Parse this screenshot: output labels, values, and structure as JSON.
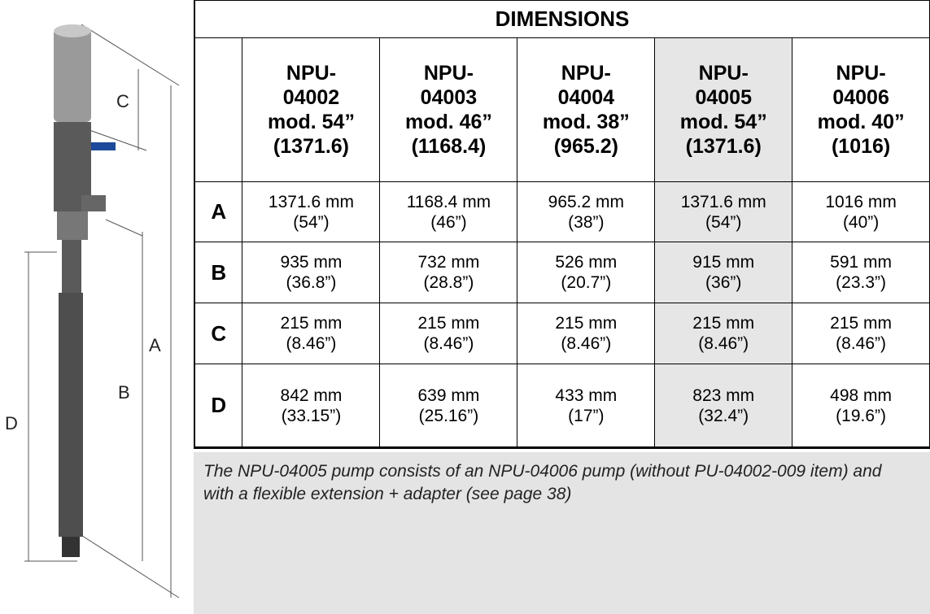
{
  "drawing": {
    "labels": [
      "C",
      "A",
      "B",
      "D"
    ]
  },
  "table": {
    "title": "DIMENSIONS",
    "columns": [
      [
        "NPU-",
        "04002",
        "mod. 54”",
        "(1371.6)"
      ],
      [
        "NPU-",
        "04003",
        "mod. 46”",
        "(1168.4)"
      ],
      [
        "NPU-",
        "04004",
        "mod. 38”",
        "(965.2)"
      ],
      [
        "NPU-",
        "04005",
        "mod. 54”",
        "(1371.6)"
      ],
      [
        "NPU-",
        "04006",
        "mod. 40”",
        "(1016)"
      ]
    ],
    "rows": [
      {
        "label": "A",
        "cells": [
          [
            "1371.6 mm",
            "(54”)"
          ],
          [
            "1168.4 mm",
            "(46”)"
          ],
          [
            "965.2 mm",
            "(38”)"
          ],
          [
            "1371.6 mm",
            "(54”)"
          ],
          [
            "1016 mm",
            "(40”)"
          ]
        ]
      },
      {
        "label": "B",
        "cells": [
          [
            "935 mm",
            "(36.8”)"
          ],
          [
            "732 mm",
            "(28.8”)"
          ],
          [
            "526 mm",
            "(20.7”)"
          ],
          [
            "915 mm",
            "(36”)"
          ],
          [
            "591 mm",
            "(23.3”)"
          ]
        ]
      },
      {
        "label": "C",
        "cells": [
          [
            "215 mm",
            "(8.46”)"
          ],
          [
            "215 mm",
            "(8.46”)"
          ],
          [
            "215 mm",
            "(8.46”)"
          ],
          [
            "215 mm",
            "(8.46”)"
          ],
          [
            "215 mm",
            "(8.46”)"
          ]
        ]
      },
      {
        "label": "D",
        "cells": [
          [
            "842 mm",
            "(33.15”)"
          ],
          [
            "639 mm",
            "(25.16”)"
          ],
          [
            "433 mm",
            "(17”)"
          ],
          [
            "823 mm",
            "(32.4”)"
          ],
          [
            "498 mm",
            "(19.6”)"
          ]
        ]
      }
    ]
  },
  "note": "The NPU-04005 pump consists of an NPU-04006 pump (without PU-04002-009 item) and with a flexible extension + adapter (see page 38)"
}
